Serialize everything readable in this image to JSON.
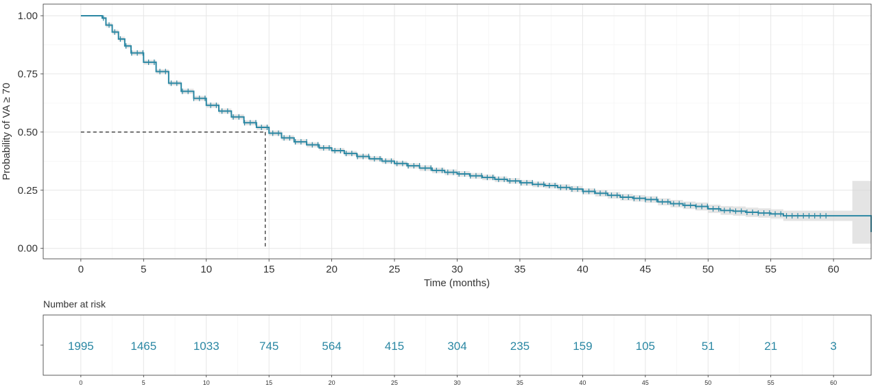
{
  "chart_data": {
    "type": "line",
    "ylabel": "Probability of VA ≥ 70",
    "xlabel": "Time (months)",
    "xlim": [
      -3,
      63
    ],
    "ylim": [
      -0.045,
      1.05
    ],
    "x_ticks": [
      0,
      5,
      10,
      15,
      20,
      25,
      30,
      35,
      40,
      45,
      50,
      55,
      60
    ],
    "x_tick_labels": [
      "0",
      "5",
      "10",
      "15",
      "20",
      "25",
      "30",
      "35",
      "40",
      "45",
      "50",
      "55",
      "60"
    ],
    "y_ticks": [
      0,
      0.25,
      0.5,
      0.75,
      1
    ],
    "y_tick_labels": [
      "0.00",
      "0.25",
      "0.50",
      "0.75",
      "1.00"
    ],
    "grid": true,
    "line_color": "#2a87a3",
    "band_color": "#d9d9d9",
    "series": [
      {
        "x": [
          0,
          1.7,
          2,
          2.5,
          3,
          3.5,
          4,
          5,
          6,
          7,
          8,
          9,
          10,
          11,
          12,
          13,
          14,
          15,
          16,
          17,
          18,
          19,
          20,
          21,
          22,
          23,
          24,
          25,
          26,
          27,
          28,
          29,
          30,
          31,
          32,
          33,
          34,
          35,
          36,
          37,
          38,
          39,
          40,
          41,
          42,
          43,
          44,
          45,
          46,
          47,
          48,
          49,
          50,
          51,
          52,
          53,
          54,
          55,
          56,
          57,
          58,
          59,
          60,
          61.5,
          63
        ],
        "y": [
          1.0,
          0.99,
          0.96,
          0.93,
          0.9,
          0.87,
          0.84,
          0.8,
          0.76,
          0.71,
          0.675,
          0.645,
          0.615,
          0.59,
          0.565,
          0.54,
          0.52,
          0.495,
          0.475,
          0.458,
          0.445,
          0.432,
          0.42,
          0.408,
          0.395,
          0.385,
          0.375,
          0.365,
          0.355,
          0.345,
          0.335,
          0.327,
          0.32,
          0.312,
          0.305,
          0.297,
          0.29,
          0.282,
          0.275,
          0.27,
          0.262,
          0.255,
          0.245,
          0.237,
          0.228,
          0.22,
          0.215,
          0.21,
          0.2,
          0.192,
          0.185,
          0.18,
          0.17,
          0.163,
          0.16,
          0.155,
          0.152,
          0.148,
          0.14,
          0.14,
          0.14,
          0.14,
          0.14,
          0.14,
          0.07
        ],
        "upper": [
          1.0,
          0.995,
          0.97,
          0.94,
          0.91,
          0.88,
          0.85,
          0.81,
          0.77,
          0.72,
          0.686,
          0.656,
          0.626,
          0.601,
          0.576,
          0.551,
          0.531,
          0.506,
          0.486,
          0.469,
          0.456,
          0.443,
          0.431,
          0.419,
          0.406,
          0.396,
          0.386,
          0.376,
          0.366,
          0.357,
          0.347,
          0.339,
          0.332,
          0.324,
          0.317,
          0.309,
          0.302,
          0.294,
          0.287,
          0.282,
          0.275,
          0.268,
          0.258,
          0.251,
          0.242,
          0.234,
          0.229,
          0.224,
          0.215,
          0.208,
          0.201,
          0.197,
          0.188,
          0.182,
          0.18,
          0.175,
          0.172,
          0.168,
          0.162,
          0.162,
          0.162,
          0.162,
          0.162,
          0.29,
          0.29
        ],
        "lower": [
          1.0,
          0.985,
          0.95,
          0.92,
          0.89,
          0.86,
          0.83,
          0.79,
          0.75,
          0.7,
          0.664,
          0.634,
          0.604,
          0.579,
          0.554,
          0.529,
          0.509,
          0.484,
          0.464,
          0.447,
          0.434,
          0.421,
          0.409,
          0.397,
          0.384,
          0.374,
          0.364,
          0.354,
          0.344,
          0.333,
          0.323,
          0.315,
          0.308,
          0.3,
          0.293,
          0.285,
          0.278,
          0.27,
          0.263,
          0.258,
          0.249,
          0.242,
          0.232,
          0.223,
          0.214,
          0.206,
          0.201,
          0.196,
          0.185,
          0.176,
          0.169,
          0.163,
          0.152,
          0.144,
          0.14,
          0.135,
          0.132,
          0.128,
          0.118,
          0.118,
          0.118,
          0.118,
          0.118,
          0.02,
          0.02
        ]
      }
    ],
    "median_time": 14.7,
    "median_probability": 0.5,
    "risk_table": {
      "title": "Number at risk",
      "times": [
        0,
        5,
        10,
        15,
        20,
        25,
        30,
        35,
        40,
        45,
        50,
        55,
        60
      ],
      "counts": [
        "1995",
        "1465",
        "1033",
        "745",
        "564",
        "415",
        "304",
        "235",
        "159",
        "105",
        "51",
        "21",
        "3"
      ],
      "text_color": "#2a87a3",
      "x_tick_labels": [
        "0",
        "5",
        "10",
        "15",
        "20",
        "25",
        "30",
        "35",
        "40",
        "45",
        "50",
        "55",
        "60"
      ]
    }
  }
}
